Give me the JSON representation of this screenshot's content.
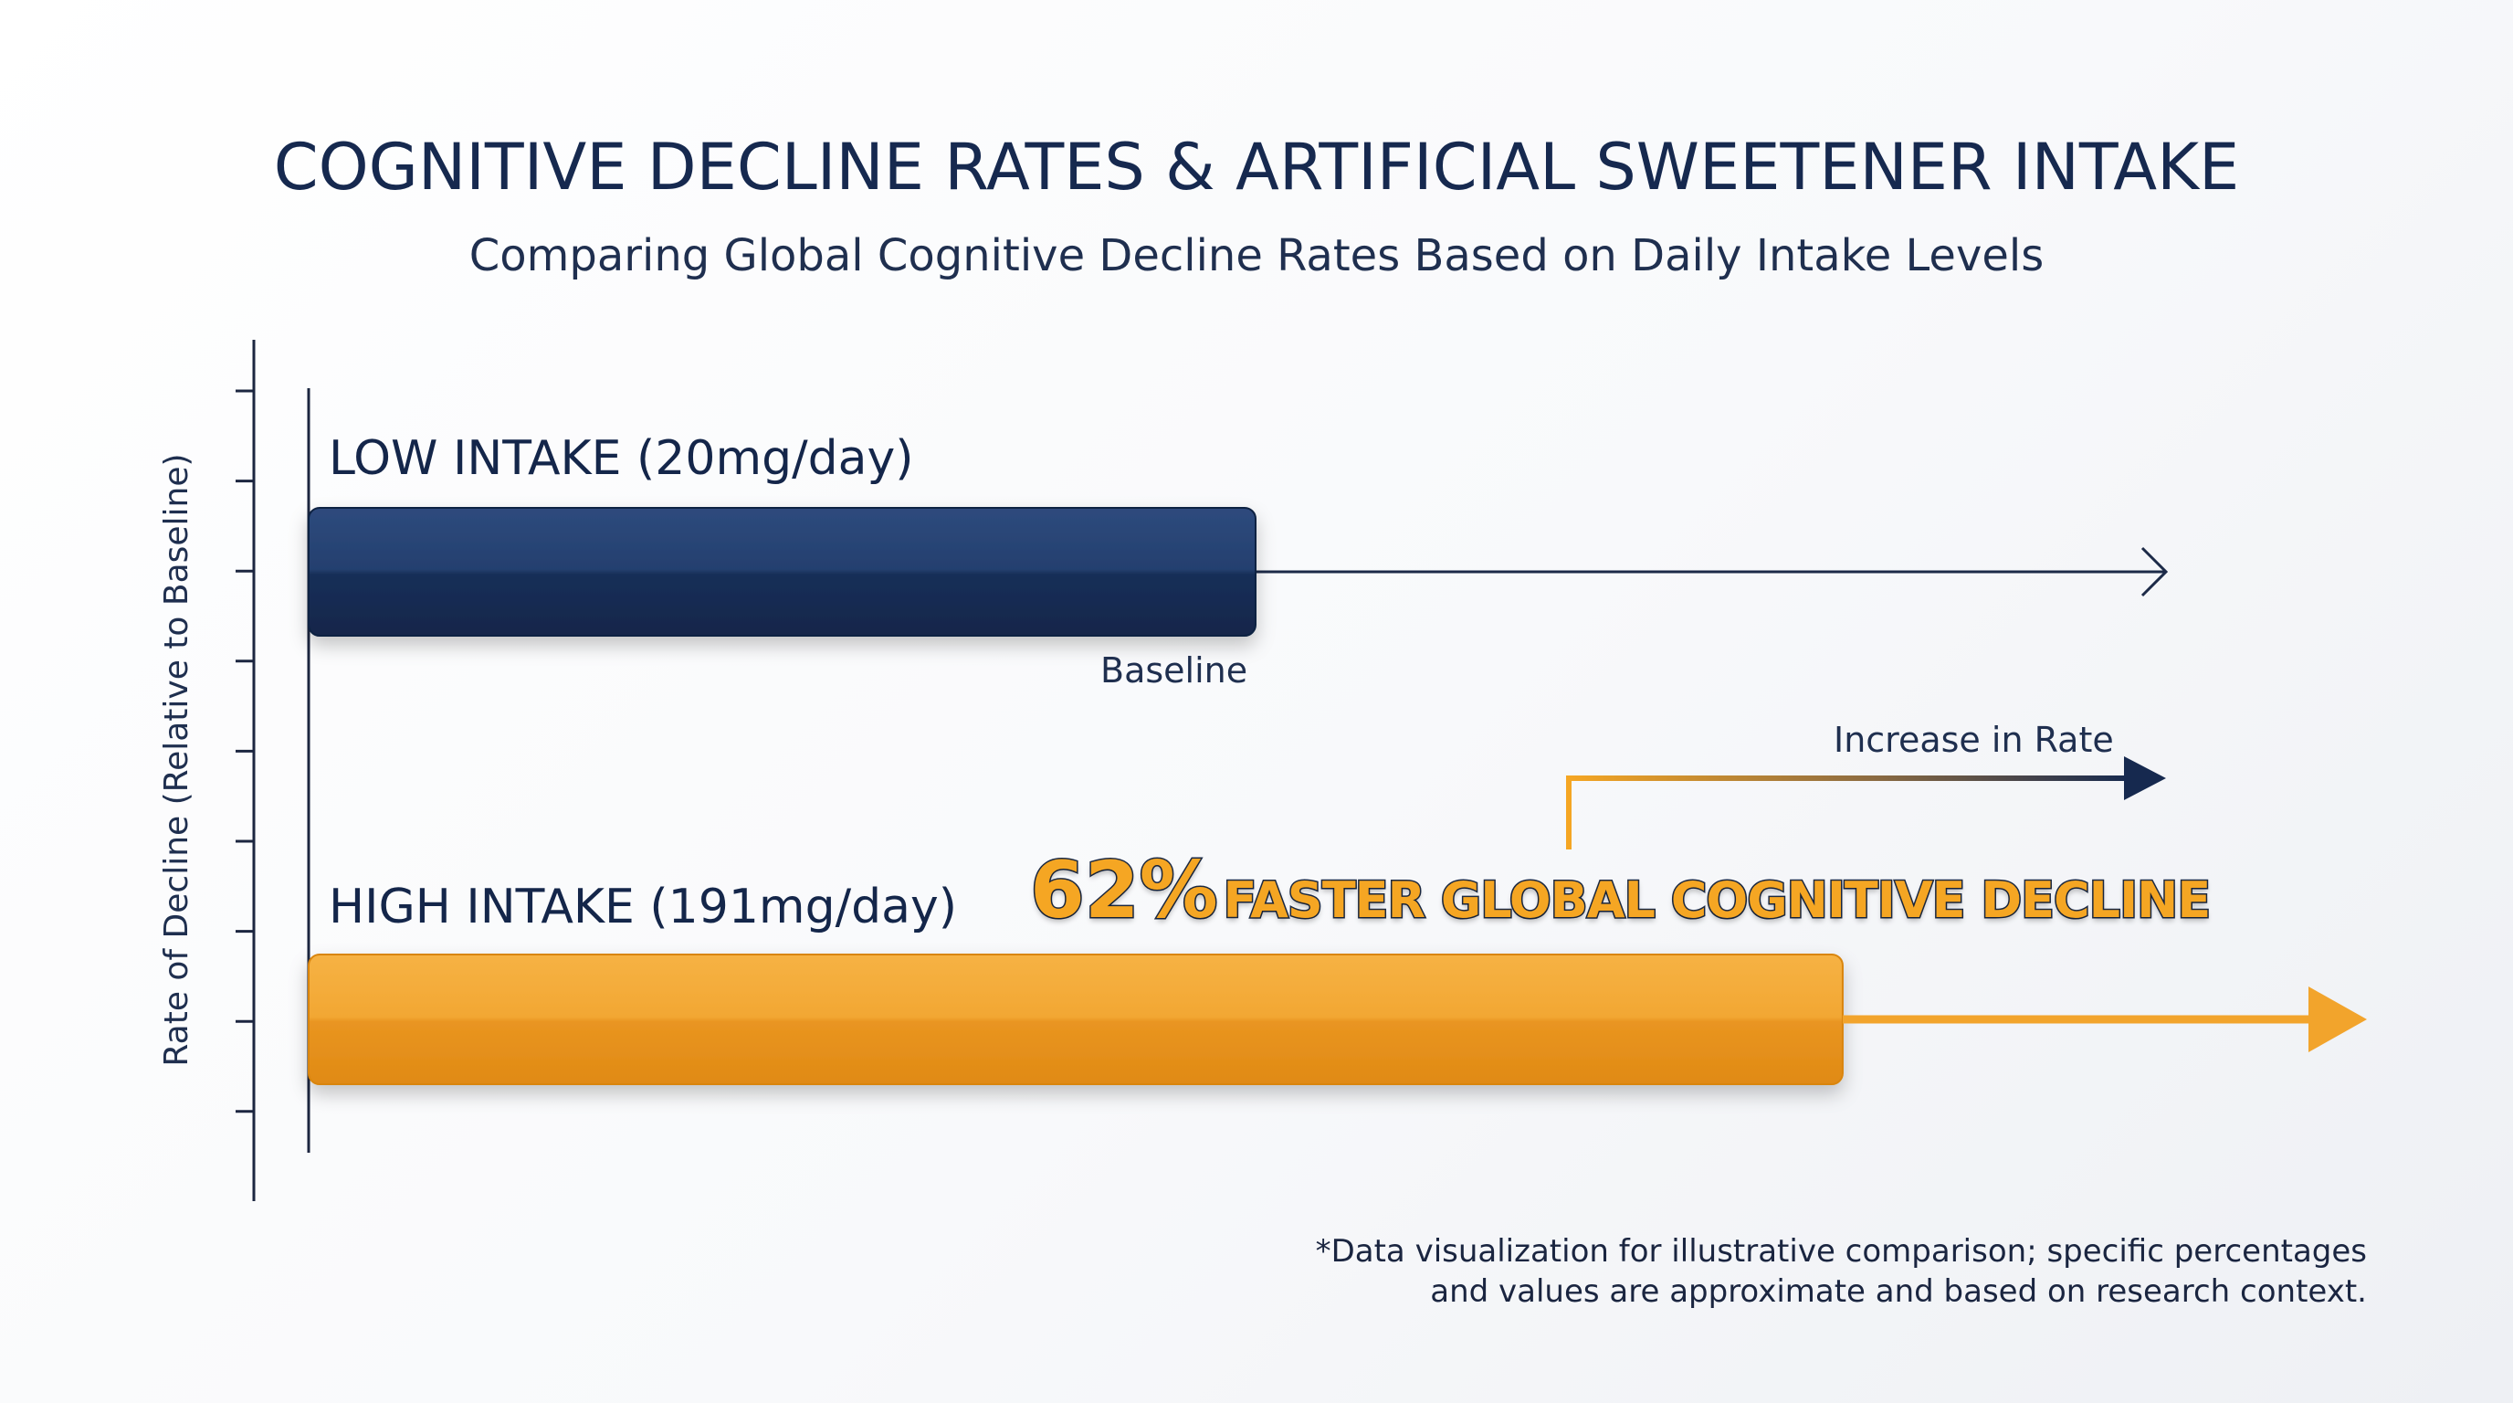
{
  "title": "COGNITIVE DECLINE RATES & ARTIFICIAL SWEETENER INTAKE",
  "subtitle": "Comparing Global Cognitive Decline Rates Based on Daily Intake Levels",
  "chart_data": {
    "type": "bar",
    "orientation": "horizontal",
    "title": "COGNITIVE DECLINE RATES & ARTIFICIAL SWEETENER INTAKE",
    "subtitle": "Comparing Global Cognitive Decline Rates Based on Daily Intake Levels",
    "ylabel": "Rate of Decline (Relative to Baseline)",
    "xlabel": "",
    "categories": [
      "LOW INTAKE (20mg/day)",
      "HIGH INTAKE (191mg/day)"
    ],
    "values": [
      1.0,
      1.62
    ],
    "units": "relative to baseline",
    "colors": [
      "#1b3460",
      "#f0a02a"
    ],
    "annotations": {
      "baseline_label": "Baseline",
      "increase_label": "Increase in Rate",
      "callout_percent": "62%",
      "callout_text": "FASTER GLOBAL COGNITIVE DECLINE"
    },
    "grid": false,
    "legend": "none"
  },
  "footnote": {
    "line1": "*Data visualization for illustrative comparison; specific percentages",
    "line2": "and values are approximate and based on research context."
  },
  "colors": {
    "navy": "#16294f",
    "orange": "#f0a02a",
    "axis": "#1c2640"
  }
}
